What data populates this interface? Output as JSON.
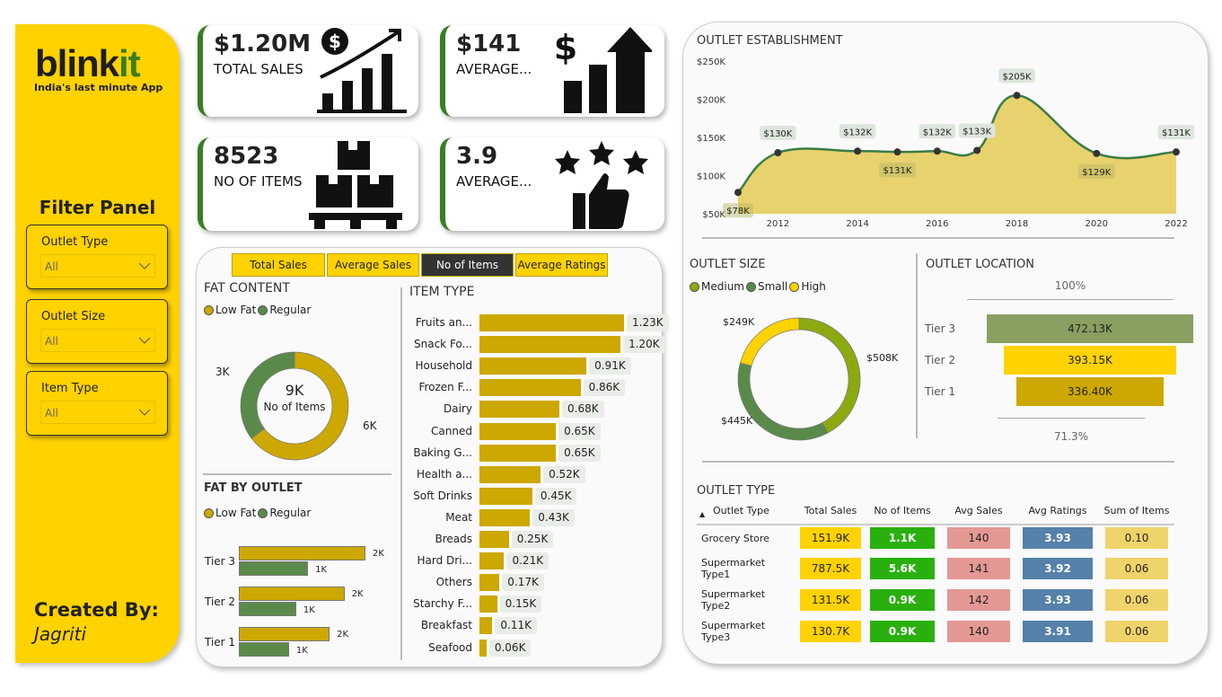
{
  "brand": {
    "logo_main": "blink",
    "logo_accent": "it",
    "tagline": "India's last minute App"
  },
  "colors": {
    "yellow": "#ffd200",
    "dark_yellow": "#cca800",
    "green": "#3b7d23",
    "regular_green": "#5a8a4a",
    "medium": "#8aaa10"
  },
  "sidebar": {
    "filter_title": "Filter Panel",
    "filters": [
      {
        "label": "Outlet Type",
        "value": "All"
      },
      {
        "label": "Outlet Size",
        "value": "All"
      },
      {
        "label": "Item Type",
        "value": "All"
      }
    ],
    "created_by": "Created By:",
    "author": "Jagriti"
  },
  "kpis": [
    {
      "value": "$1.20M",
      "label": "TOTAL SALES",
      "icon": "sales-growth-icon"
    },
    {
      "value": "$141",
      "label": "AVERAGE...",
      "icon": "dollar-bar-chart-icon"
    },
    {
      "value": "8523",
      "label": "NO OF ITEMS",
      "icon": "boxes-pallet-icon"
    },
    {
      "value": "3.9",
      "label": "AVERAGE...",
      "icon": "stars-thumbs-up-icon"
    }
  ],
  "tabs": [
    {
      "label": "Total Sales"
    },
    {
      "label": "Average Sales"
    },
    {
      "label": "No of Items",
      "active": true
    },
    {
      "label": "Average Ratings"
    }
  ],
  "fat_content": {
    "title": "FAT CONTENT",
    "legend": [
      "Low Fat",
      "Regular"
    ],
    "center_value": "9K",
    "center_label": "No of Items",
    "slices": [
      {
        "name": "Low Fat",
        "value": 5517,
        "label": "6K"
      },
      {
        "name": "Regular",
        "value": 3006,
        "label": "3K"
      }
    ]
  },
  "fat_by_outlet": {
    "title": "FAT BY OUTLET",
    "legend": [
      "Low Fat",
      "Regular"
    ],
    "rows": [
      {
        "tier": "Tier 3",
        "low_fat": 2.12,
        "regular": 1.16,
        "lf_label": "2K",
        "reg_label": "1K"
      },
      {
        "tier": "Tier 2",
        "low_fat": 1.77,
        "regular": 0.96,
        "lf_label": "2K",
        "reg_label": "1K"
      },
      {
        "tier": "Tier 1",
        "low_fat": 1.52,
        "regular": 0.84,
        "lf_label": "2K",
        "reg_label": "1K"
      }
    ]
  },
  "item_type": {
    "title": "ITEM TYPE",
    "items": [
      {
        "name": "Fruits an...",
        "value": 1.23,
        "label": "1.23K"
      },
      {
        "name": "Snack Fo...",
        "value": 1.2,
        "label": "1.20K"
      },
      {
        "name": "Household",
        "value": 0.91,
        "label": "0.91K"
      },
      {
        "name": "Frozen F...",
        "value": 0.86,
        "label": "0.86K"
      },
      {
        "name": "Dairy",
        "value": 0.68,
        "label": "0.68K"
      },
      {
        "name": "Canned",
        "value": 0.65,
        "label": "0.65K"
      },
      {
        "name": "Baking G...",
        "value": 0.65,
        "label": "0.65K"
      },
      {
        "name": "Health a...",
        "value": 0.52,
        "label": "0.52K"
      },
      {
        "name": "Soft Drinks",
        "value": 0.45,
        "label": "0.45K"
      },
      {
        "name": "Meat",
        "value": 0.43,
        "label": "0.43K"
      },
      {
        "name": "Breads",
        "value": 0.25,
        "label": "0.25K"
      },
      {
        "name": "Hard Dri...",
        "value": 0.21,
        "label": "0.21K"
      },
      {
        "name": "Others",
        "value": 0.17,
        "label": "0.17K"
      },
      {
        "name": "Starchy F...",
        "value": 0.15,
        "label": "0.15K"
      },
      {
        "name": "Breakfast",
        "value": 0.11,
        "label": "0.11K"
      },
      {
        "name": "Seafood",
        "value": 0.06,
        "label": "0.06K"
      }
    ]
  },
  "chart_data": {
    "type": "area",
    "title": "OUTLET ESTABLISHMENT",
    "x": [
      2011,
      2012,
      2014,
      2015,
      2016,
      2017,
      2018,
      2020,
      2022
    ],
    "values": [
      78,
      130,
      132,
      131,
      132,
      133,
      205,
      129,
      131
    ],
    "labels": [
      "$78K",
      "$130K",
      "$132K",
      "$131K",
      "$132K",
      "$133K",
      "$205K",
      "$129K",
      "$131K"
    ],
    "xticks": [
      "2012",
      "2014",
      "2016",
      "2018",
      "2020",
      "2022"
    ],
    "yticks": [
      "$50K",
      "$100K",
      "$150K",
      "$200K",
      "$250K"
    ],
    "ylim": [
      50,
      250
    ],
    "xlim": [
      2011,
      2022
    ]
  },
  "outlet_size": {
    "title": "OUTLET SIZE",
    "legend": [
      "Medium",
      "Small",
      "High"
    ],
    "slices": [
      {
        "name": "Medium",
        "value": 508,
        "label": "$508K"
      },
      {
        "name": "Small",
        "value": 445,
        "label": "$445K"
      },
      {
        "name": "High",
        "value": 249,
        "label": "$249K"
      }
    ]
  },
  "outlet_location": {
    "title": "OUTLET LOCATION",
    "top_pct": "100%",
    "bottom_pct": "71.3%",
    "rows": [
      {
        "tier": "Tier 3",
        "value": 472.13,
        "label": "472.13K"
      },
      {
        "tier": "Tier 2",
        "value": 393.15,
        "label": "393.15K"
      },
      {
        "tier": "Tier 1",
        "value": 336.4,
        "label": "336.40K"
      }
    ]
  },
  "outlet_type": {
    "title": "OUTLET TYPE",
    "columns": [
      "Outlet Type",
      "Total Sales",
      "No of Items",
      "Avg Sales",
      "Avg Ratings",
      "Sum of Items"
    ],
    "rows": [
      [
        "Grocery Store",
        "151.9K",
        "1.1K",
        "140",
        "3.93",
        "0.10"
      ],
      [
        "Supermarket Type1",
        "787.5K",
        "5.6K",
        "141",
        "3.92",
        "0.06"
      ],
      [
        "Supermarket Type2",
        "131.5K",
        "0.9K",
        "142",
        "3.93",
        "0.06"
      ],
      [
        "Supermarket Type3",
        "130.7K",
        "0.9K",
        "140",
        "3.91",
        "0.06"
      ]
    ]
  }
}
